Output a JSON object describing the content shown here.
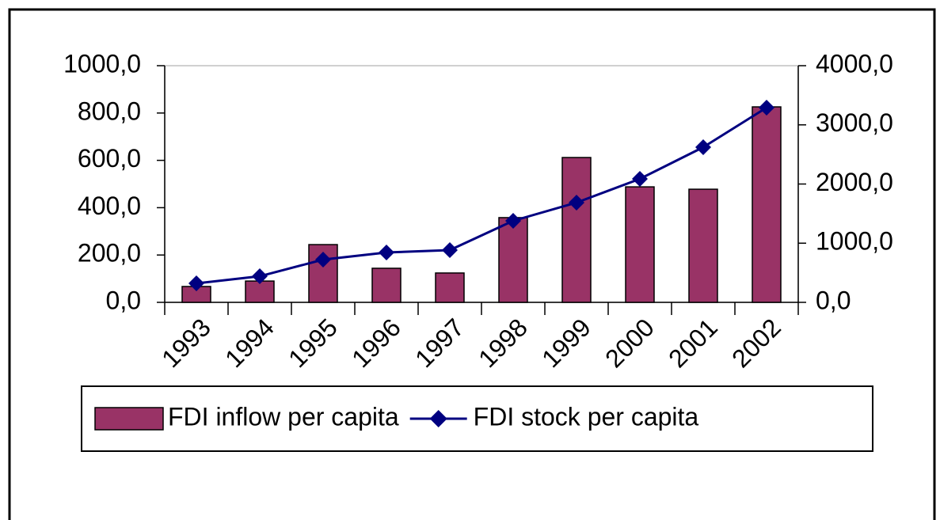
{
  "chart_data": {
    "type": "bar",
    "categories": [
      "1993",
      "1994",
      "1995",
      "1996",
      "1997",
      "1998",
      "1999",
      "2000",
      "2001",
      "2002"
    ],
    "series": [
      {
        "name": "FDI inflow per capita",
        "type": "bar",
        "color": "#993366",
        "values": [
          67,
          90,
          244,
          144,
          124,
          358,
          612,
          488,
          478,
          826
        ]
      },
      {
        "name": "FDI stock per capita",
        "type": "line",
        "axis": "y2",
        "color": "#000080",
        "values": [
          321,
          441,
          722,
          843,
          883,
          1378,
          1686,
          2087,
          2622,
          3291
        ]
      }
    ],
    "ylim": [
      0,
      1000
    ],
    "yticks": [
      {
        "value": 0,
        "label": "0,0"
      },
      {
        "value": 200,
        "label": "200,0"
      },
      {
        "value": 400,
        "label": "400,0"
      },
      {
        "value": 600,
        "label": "600,0"
      },
      {
        "value": 800,
        "label": "800,0"
      },
      {
        "value": 1000,
        "label": "1000,0"
      }
    ],
    "y2lim": [
      0,
      4000
    ],
    "y2ticks": [
      {
        "value": 0,
        "label": "0,0"
      },
      {
        "value": 1000,
        "label": "1000,0"
      },
      {
        "value": 2000,
        "label": "2000,0"
      },
      {
        "value": 3000,
        "label": "3000,0"
      },
      {
        "value": 4000,
        "label": "4000,0"
      }
    ],
    "legend": "bottom"
  }
}
